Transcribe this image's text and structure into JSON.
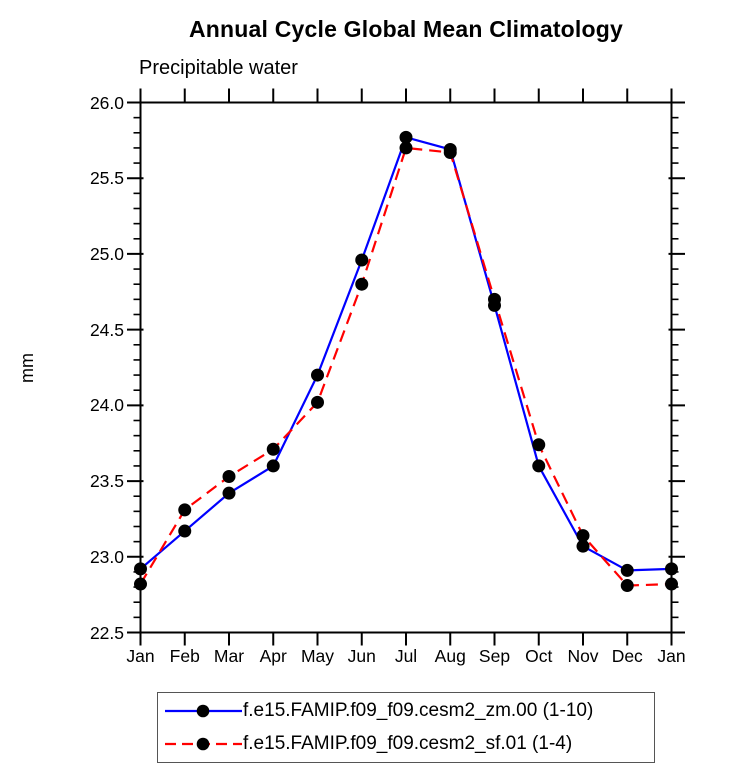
{
  "page": {
    "background": "#ffffff"
  },
  "chart_data": {
    "type": "line",
    "title": "Annual Cycle Global Mean Climatology",
    "subtitle": "Precipitable water",
    "xlabel": "",
    "ylabel": "mm",
    "x_tick_labels": [
      "Jan",
      "Feb",
      "Mar",
      "Apr",
      "May",
      "Jun",
      "Jul",
      "Aug",
      "Sep",
      "Oct",
      "Nov",
      "Dec",
      "Jan"
    ],
    "y_tick_labels": [
      "22.5",
      "23.0",
      "23.5",
      "24.0",
      "24.5",
      "25.0",
      "25.5",
      "26.0"
    ],
    "y_ticks": [
      22.5,
      23.0,
      23.5,
      24.0,
      24.5,
      25.0,
      25.5,
      26.0
    ],
    "ylim": [
      22.5,
      26.0
    ],
    "y_minor_step": 0.1,
    "grid": false,
    "axis_color": "#000000",
    "marker": "circle",
    "marker_color": "#000000",
    "legend_position": "bottom",
    "series": [
      {
        "name": "f.e15.FAMIP.f09_f09.cesm2_zm.00 (1-10)",
        "color": "#0000ff",
        "style": "solid",
        "values": [
          22.92,
          23.17,
          23.42,
          23.6,
          24.2,
          24.96,
          25.77,
          25.69,
          24.66,
          23.6,
          23.07,
          22.91,
          22.92
        ]
      },
      {
        "name": "f.e15.FAMIP.f09_f09.cesm2_sf.01 (1-4)",
        "color": "#ff0000",
        "style": "dashed",
        "values": [
          22.82,
          23.31,
          23.53,
          23.71,
          24.02,
          24.8,
          25.7,
          25.67,
          24.7,
          23.74,
          23.14,
          22.81,
          22.82
        ]
      }
    ]
  }
}
